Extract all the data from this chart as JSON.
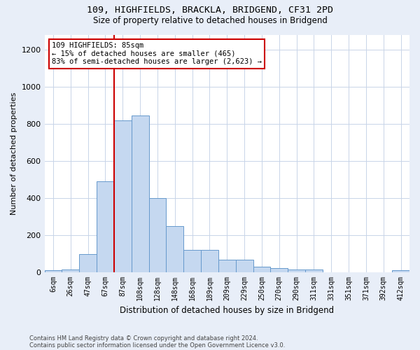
{
  "title1": "109, HIGHFIELDS, BRACKLA, BRIDGEND, CF31 2PD",
  "title2": "Size of property relative to detached houses in Bridgend",
  "xlabel": "Distribution of detached houses by size in Bridgend",
  "ylabel": "Number of detached properties",
  "footer1": "Contains HM Land Registry data © Crown copyright and database right 2024.",
  "footer2": "Contains public sector information licensed under the Open Government Licence v3.0.",
  "annotation_line1": "109 HIGHFIELDS: 85sqm",
  "annotation_line2": "← 15% of detached houses are smaller (465)",
  "annotation_line3": "83% of semi-detached houses are larger (2,623) →",
  "bar_color": "#c5d8f0",
  "bar_edge_color": "#6699cc",
  "vline_color": "#cc0000",
  "annotation_box_edgecolor": "#cc0000",
  "annotation_box_facecolor": "#ffffff",
  "categories": [
    "6sqm",
    "26sqm",
    "47sqm",
    "67sqm",
    "87sqm",
    "108sqm",
    "128sqm",
    "148sqm",
    "168sqm",
    "189sqm",
    "209sqm",
    "229sqm",
    "250sqm",
    "270sqm",
    "290sqm",
    "311sqm",
    "331sqm",
    "351sqm",
    "371sqm",
    "392sqm",
    "412sqm"
  ],
  "values": [
    8,
    15,
    95,
    490,
    820,
    845,
    400,
    248,
    120,
    120,
    65,
    65,
    30,
    20,
    12,
    12,
    0,
    0,
    0,
    0,
    8
  ],
  "ylim": [
    0,
    1280
  ],
  "yticks": [
    0,
    200,
    400,
    600,
    800,
    1000,
    1200
  ],
  "vline_x": 3.5,
  "background_color": "#e8eef8",
  "plot_bg_color": "#ffffff",
  "grid_color": "#c8d4e8"
}
